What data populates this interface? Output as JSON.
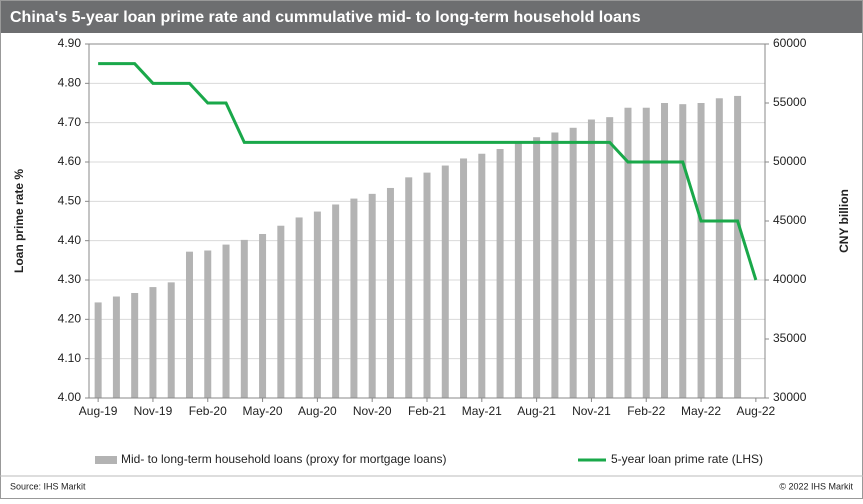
{
  "chart_data": {
    "type": "bar-line",
    "title": "China's 5-year loan prime rate and cummulative mid- to long-term household loans",
    "y_label": "Loan prime rate %",
    "y2_label": "CNY billion",
    "categories": [
      "Aug-19",
      null,
      null,
      "Nov-19",
      null,
      null,
      "Feb-20",
      null,
      null,
      "May-20",
      null,
      null,
      "Aug-20",
      null,
      null,
      "Nov-20",
      null,
      null,
      "Feb-21",
      null,
      null,
      "May-21",
      null,
      null,
      "Aug-21",
      null,
      null,
      "Nov-21",
      null,
      null,
      "Feb-22",
      null,
      null,
      "May-22",
      null,
      null,
      "Aug-22"
    ],
    "series": [
      {
        "name": "Mid- to long-term household loans (proxy for mortgage loans)",
        "type": "bar",
        "axis": "y2",
        "color": "#b3b3b3",
        "values": [
          38100,
          38600,
          38900,
          39400,
          39800,
          42400,
          42500,
          43000,
          43400,
          43900,
          44600,
          45300,
          45800,
          46400,
          46900,
          47300,
          47800,
          48700,
          49100,
          49700,
          50300,
          50700,
          51100,
          51600,
          52100,
          52500,
          52900,
          53600,
          53800,
          54600,
          54600,
          55000,
          54900,
          55000,
          55400,
          55600,
          null
        ]
      },
      {
        "name": "5-year loan prime rate (LHS)",
        "type": "line",
        "color": "#1aa84a",
        "values": [
          4.85,
          4.85,
          4.85,
          4.8,
          4.8,
          4.8,
          4.75,
          4.75,
          4.65,
          4.65,
          4.65,
          4.65,
          4.65,
          4.65,
          4.65,
          4.65,
          4.65,
          4.65,
          4.65,
          4.65,
          4.65,
          4.65,
          4.65,
          4.65,
          4.65,
          4.65,
          4.65,
          4.65,
          4.65,
          4.6,
          4.6,
          4.6,
          4.6,
          4.45,
          4.45,
          4.45,
          4.3
        ]
      }
    ],
    "ylim": [
      4.0,
      4.9
    ],
    "yticks": [
      {
        "value": 4.0,
        "label": "4.00"
      },
      {
        "value": 4.1,
        "label": "4.10"
      },
      {
        "value": 4.2,
        "label": "4.20"
      },
      {
        "value": 4.3,
        "label": "4.30"
      },
      {
        "value": 4.4,
        "label": "4.40"
      },
      {
        "value": 4.5,
        "label": "4.50"
      },
      {
        "value": 4.6,
        "label": "4.60"
      },
      {
        "value": 4.7,
        "label": "4.70"
      },
      {
        "value": 4.8,
        "label": "4.80"
      },
      {
        "value": 4.9,
        "label": "4.90"
      }
    ],
    "y2lim": [
      30000,
      60000
    ],
    "y2ticks": [
      30000,
      35000,
      40000,
      45000,
      50000,
      55000,
      60000
    ],
    "grid": true,
    "source": "Source: IHS Markit",
    "copyright": "© 2022 IHS Markit"
  }
}
